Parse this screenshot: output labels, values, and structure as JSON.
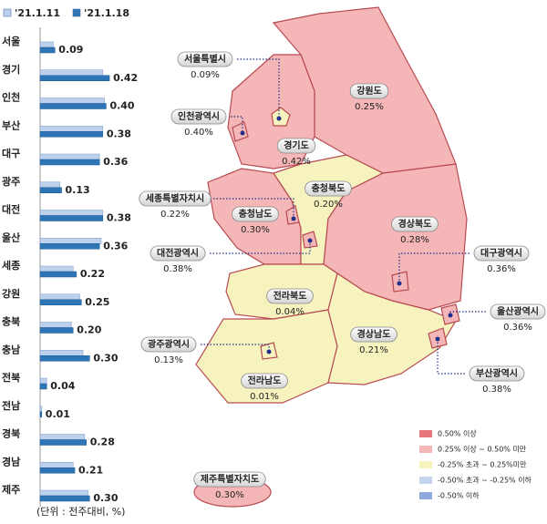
{
  "chart_data": {
    "type": "bar",
    "orientation": "horizontal",
    "categories": [
      "서울",
      "경기",
      "인천",
      "부산",
      "대구",
      "광주",
      "대전",
      "울산",
      "세종",
      "강원",
      "충북",
      "충남",
      "전북",
      "전남",
      "경북",
      "경남",
      "제주"
    ],
    "series": [
      {
        "name": "'21.1.11",
        "color": "#bdd0ec",
        "values": [
          0.08,
          0.38,
          0.39,
          0.38,
          0.36,
          0.12,
          0.38,
          0.37,
          0.2,
          0.24,
          0.19,
          0.26,
          0.04,
          0.01,
          0.27,
          0.2,
          0.29
        ]
      },
      {
        "name": "'21.1.18",
        "color": "#2e75b6",
        "values": [
          0.09,
          0.42,
          0.4,
          0.38,
          0.36,
          0.13,
          0.38,
          0.36,
          0.22,
          0.25,
          0.2,
          0.3,
          0.04,
          0.01,
          0.28,
          0.21,
          0.3
        ],
        "value_labels": [
          "0.09",
          "0.42",
          "0.40",
          "0.38",
          "0.36",
          "0.13",
          "0.38",
          "0.36",
          "0.22",
          "0.25",
          "0.20",
          "0.30",
          "0.04",
          "0.01",
          "0.28",
          "0.21",
          "0.30"
        ]
      }
    ],
    "xlim": [
      0,
      0.45
    ],
    "footnote": "(단위 : 전주대비, %)"
  },
  "map": {
    "regions": [
      {
        "name": "서울특별시",
        "value": "0.09%"
      },
      {
        "name": "강원도",
        "value": "0.25%"
      },
      {
        "name": "인천광역시",
        "value": "0.40%"
      },
      {
        "name": "경기도",
        "value": "0.42%"
      },
      {
        "name": "세종특별자치시",
        "value": "0.22%"
      },
      {
        "name": "충청북도",
        "value": "0.20%"
      },
      {
        "name": "충청남도",
        "value": "0.30%"
      },
      {
        "name": "경상북도",
        "value": "0.28%"
      },
      {
        "name": "대구광역시",
        "value": "0.36%"
      },
      {
        "name": "대전광역시",
        "value": "0.38%"
      },
      {
        "name": "전라북도",
        "value": "0.04%"
      },
      {
        "name": "울산광역시",
        "value": "0.36%"
      },
      {
        "name": "광주광역시",
        "value": "0.13%"
      },
      {
        "name": "경상남도",
        "value": "0.21%"
      },
      {
        "name": "전라남도",
        "value": "0.01%"
      },
      {
        "name": "부산광역시",
        "value": "0.38%"
      },
      {
        "name": "제주특별자치도",
        "value": "0.30%"
      }
    ],
    "legend": [
      {
        "label": "0.50% 이상",
        "color": "#e8757b"
      },
      {
        "label": "0.25% 이상 ~ 0.50% 미만",
        "color": "#f4b6b6"
      },
      {
        "label": "-0.25% 초과 ~ 0.25%미만",
        "color": "#f7f3bf"
      },
      {
        "label": "-0.50% 초과 ~ -0.25% 이하",
        "color": "#c5d3ee"
      },
      {
        "label": "-0.50% 이하",
        "color": "#8ea9db"
      }
    ]
  }
}
